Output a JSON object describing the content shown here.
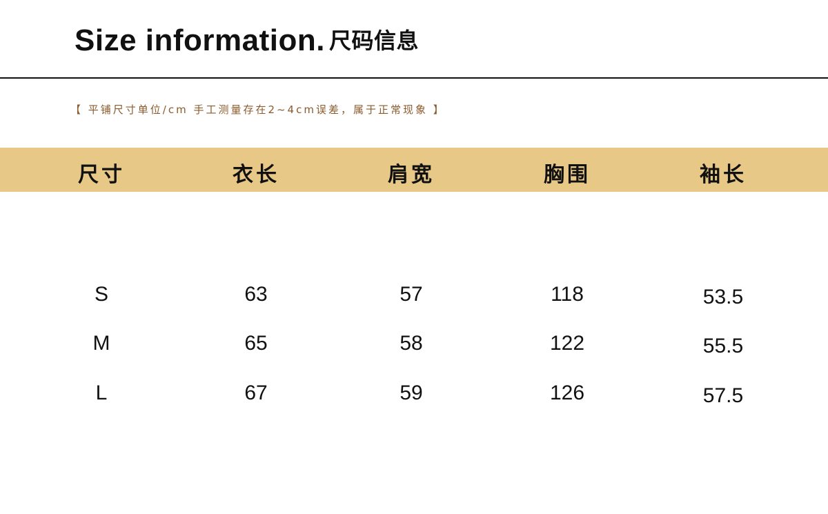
{
  "title": {
    "en": "Size information.",
    "cn": "尺码信息"
  },
  "note": "【 平铺尺寸单位/cm 手工测量存在2~4cm误差，属于正常现象 】",
  "colors": {
    "header_band": "#e8c886",
    "note_text": "#8a5a2b"
  },
  "table": {
    "headers": [
      "尺寸",
      "衣长",
      "肩宽",
      "胸围",
      "袖长"
    ],
    "rows": [
      [
        "S",
        "63",
        "57",
        "118",
        "53.5"
      ],
      [
        "M",
        "65",
        "58",
        "122",
        "55.5"
      ],
      [
        "L",
        "67",
        "59",
        "126",
        "57.5"
      ]
    ]
  }
}
